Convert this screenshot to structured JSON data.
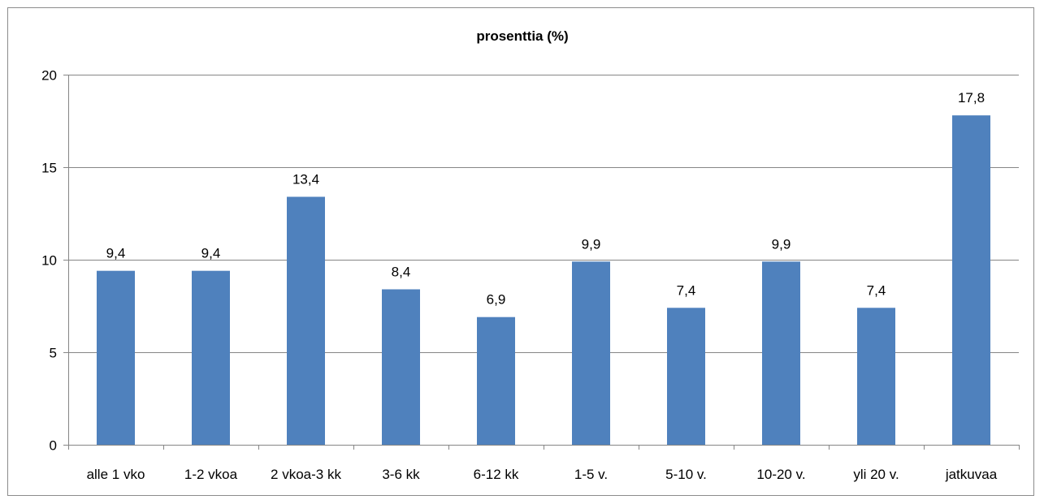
{
  "chart_data": {
    "type": "bar",
    "title": "prosenttia (%)",
    "xlabel": "",
    "ylabel": "",
    "categories": [
      "alle 1 vko",
      "1-2 vkoa",
      "2 vkoa-3 kk",
      "3-6 kk",
      "6-12 kk",
      "1-5 v.",
      "5-10 v.",
      "10-20 v.",
      "yli 20 v.",
      "jatkuvaa"
    ],
    "values": [
      9.4,
      9.4,
      13.4,
      8.4,
      6.9,
      9.9,
      7.4,
      9.9,
      7.4,
      17.8
    ],
    "value_labels": [
      "9,4",
      "9,4",
      "13,4",
      "8,4",
      "6,9",
      "9,9",
      "7,4",
      "9,9",
      "7,4",
      "17,8"
    ],
    "ylim": [
      0,
      20
    ],
    "yticks": [
      0,
      5,
      10,
      15,
      20
    ],
    "ytick_labels": [
      "0",
      "5",
      "10",
      "15",
      "20"
    ],
    "grid": true,
    "legend": "none",
    "bar_color": "#4f81bd",
    "grid_color": "#868686"
  }
}
